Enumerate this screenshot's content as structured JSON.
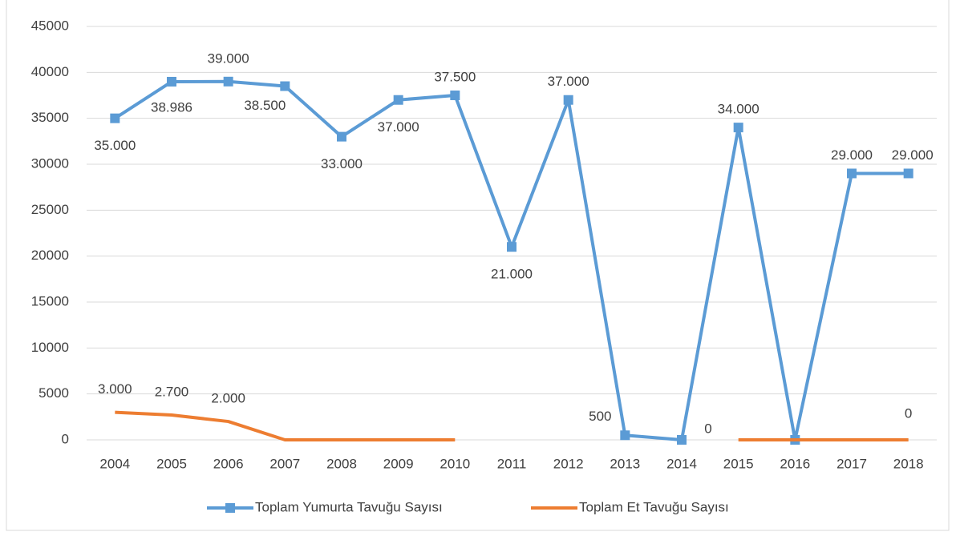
{
  "chart_data": {
    "type": "line",
    "categories": [
      "2004",
      "2005",
      "2006",
      "2007",
      "2008",
      "2009",
      "2010",
      "2011",
      "2012",
      "2013",
      "2014",
      "2015",
      "2016",
      "2017",
      "2018"
    ],
    "series": [
      {
        "name": "Toplam Yumurta Tavuğu Sayısı",
        "color": "#5b9bd5",
        "marker": "square",
        "values": [
          35000,
          38986,
          39000,
          38500,
          33000,
          37000,
          37500,
          21000,
          37000,
          500,
          0,
          34000,
          0,
          29000,
          29000
        ],
        "value_labels": [
          "35.000",
          "38.986",
          "39.000",
          "38.500",
          "33.000",
          "37.000",
          "37.500",
          "21.000",
          "37.000",
          "500",
          "0",
          "34.000",
          null,
          "29.000",
          "29.000"
        ]
      },
      {
        "name": "Toplam Et Tavuğu Sayısı",
        "color": "#ed7d31",
        "values": [
          3000,
          2700,
          2000,
          0,
          0,
          0,
          0,
          null,
          null,
          null,
          null,
          0,
          0,
          0,
          0
        ],
        "value_labels": [
          "3.000",
          "2.700",
          "2.000",
          null,
          null,
          null,
          null,
          null,
          null,
          null,
          null,
          null,
          null,
          null,
          "0"
        ]
      }
    ],
    "ylim": [
      0,
      45000
    ],
    "yticks": [
      0,
      5000,
      10000,
      15000,
      20000,
      25000,
      30000,
      35000,
      40000,
      45000
    ],
    "grid": true,
    "legend": "bottom"
  }
}
